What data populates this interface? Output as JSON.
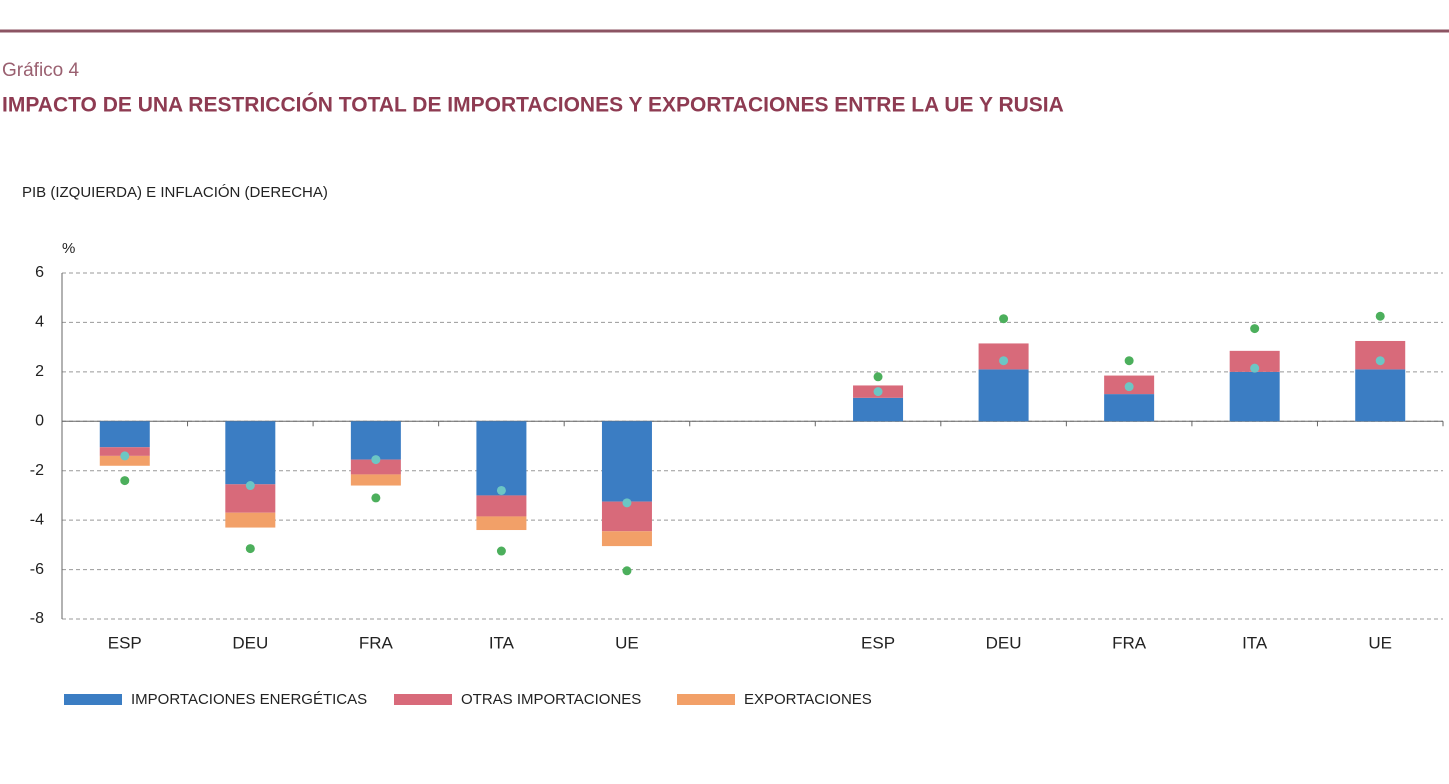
{
  "chart_data": {
    "type": "bar",
    "label": "Gráfico 4",
    "title": "IMPACTO DE UNA RESTRICCIÓN TOTAL DE IMPORTACIONES Y EXPORTACIONES ENTRE LA UE Y RUSIA",
    "subtitle": "PIB (IZQUIERDA) E INFLACIÓN (DERECHA)",
    "ylabel": "%",
    "stacked": true,
    "grid": true,
    "legend": "bottom-left",
    "categories": [
      "ESP",
      "DEU",
      "FRA",
      "ITA",
      "UE",
      null,
      "ESP",
      "DEU",
      "FRA",
      "ITA",
      "UE"
    ],
    "series": [
      {
        "name": "IMPORTACIONES ENERGÉTICAS",
        "color": "#3b7dc3",
        "values": [
          -1.05,
          -2.55,
          -1.55,
          -3.0,
          -3.25,
          null,
          0.95,
          2.1,
          1.1,
          2.0,
          2.1
        ]
      },
      {
        "name": "OTRAS IMPORTACIONES",
        "color": "#d86a7a",
        "values": [
          -0.35,
          -1.15,
          -0.6,
          -0.85,
          -1.2,
          null,
          0.5,
          1.05,
          0.75,
          0.85,
          1.15
        ]
      },
      {
        "name": "EXPORTACIONES",
        "color": "#f2a068",
        "values": [
          -0.4,
          -0.6,
          -0.45,
          -0.55,
          -0.6,
          null,
          null,
          null,
          null,
          null,
          null
        ]
      }
    ],
    "points": [
      {
        "color": "#4caf5c",
        "values": [
          -2.4,
          -5.15,
          -3.1,
          -5.25,
          -6.05,
          null,
          1.8,
          4.15,
          2.45,
          3.75,
          4.25
        ]
      },
      {
        "color": "#6cc6c4",
        "values": [
          -1.4,
          -2.6,
          -1.55,
          -2.8,
          -3.3,
          null,
          1.2,
          2.45,
          1.4,
          2.15,
          2.45
        ]
      }
    ],
    "ylim": [
      -8,
      6
    ],
    "yticks": [
      -8,
      -6,
      -4,
      -2,
      0,
      2,
      4,
      6
    ]
  }
}
